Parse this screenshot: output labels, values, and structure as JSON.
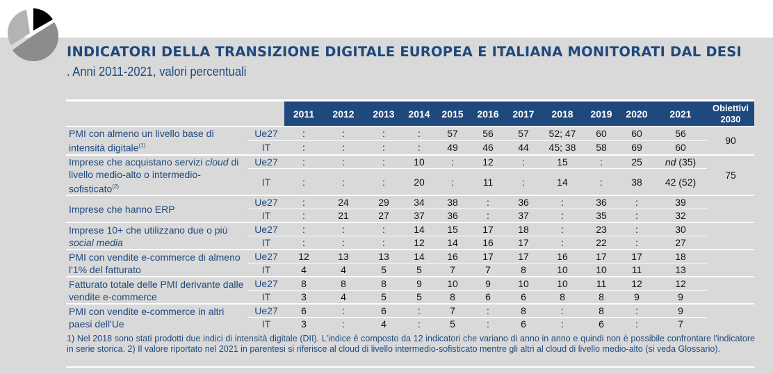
{
  "title": {
    "bold": "INDICATORI DELLA TRANSIZIONE DIGITALE EUROPEA E ITALIANA MONITORATI DAL DESI",
    "subtitle": ". Anni 2011-2021, valori percentuali"
  },
  "icon": "pie-chart-icon",
  "colors": {
    "accent": "#1f497d",
    "panel": "#d9d9d9"
  },
  "table": {
    "years": [
      "2011",
      "2012",
      "2013",
      "2014",
      "2015",
      "2016",
      "2017",
      "2018",
      "2019",
      "2020",
      "2021"
    ],
    "target_header": "Obiettivi 2030",
    "indicators": [
      {
        "label": "PMI con almeno un livello base di intensità digitale",
        "note": "(1)",
        "target": "90",
        "rows": [
          {
            "geo": "Ue27",
            "values": [
              ":",
              ":",
              ":",
              ":",
              "57",
              "56",
              "57",
              "52; 47",
              "60",
              "60",
              "56"
            ]
          },
          {
            "geo": "IT",
            "values": [
              ":",
              ":",
              ":",
              ":",
              "49",
              "46",
              "44",
              "45; 38",
              "58",
              "69",
              "60"
            ]
          }
        ]
      },
      {
        "label_pre": "Imprese che acquistano servizi ",
        "label_it": "cloud",
        "label_post": " di livello medio-alto o intermedio-sofisticato",
        "note": "(2)",
        "target": "75",
        "rows": [
          {
            "geo": "Ue27",
            "values": [
              ":",
              ":",
              ":",
              "10",
              ":",
              "12",
              ":",
              "15",
              ":",
              "25",
              "nd (35)"
            ]
          },
          {
            "geo": "IT",
            "values": [
              ":",
              ":",
              ":",
              "20",
              ":",
              "11",
              ":",
              "14",
              ":",
              "38",
              "42 (52)"
            ]
          }
        ]
      },
      {
        "label": "Imprese che hanno ERP",
        "target": "",
        "rows": [
          {
            "geo": "Ue27",
            "values": [
              ":",
              "24",
              "29",
              "34",
              "38",
              ":",
              "36",
              ":",
              "36",
              ":",
              "39"
            ]
          },
          {
            "geo": "IT",
            "values": [
              ":",
              "21",
              "27",
              "37",
              "36",
              ":",
              "37",
              ":",
              "35",
              ":",
              "32"
            ]
          }
        ]
      },
      {
        "label_pre": "Imprese 10+ che utilizzano due o più ",
        "label_it": "social media",
        "label_post": "",
        "target": "",
        "rows": [
          {
            "geo": "Ue27",
            "values": [
              ":",
              ":",
              ":",
              "14",
              "15",
              "17",
              "18",
              ":",
              "23",
              ":",
              "30"
            ]
          },
          {
            "geo": "IT",
            "values": [
              ":",
              ":",
              ":",
              "12",
              "14",
              "16",
              "17",
              ":",
              "22",
              ":",
              "27"
            ]
          }
        ]
      },
      {
        "label": "PMI con vendite e-commerce di almeno l'1% del fatturato",
        "target": "",
        "rows": [
          {
            "geo": "Ue27",
            "values": [
              "12",
              "13",
              "13",
              "14",
              "16",
              "17",
              "17",
              "16",
              "17",
              "17",
              "18"
            ]
          },
          {
            "geo": "IT",
            "values": [
              "4",
              "4",
              "5",
              "5",
              "7",
              "7",
              "8",
              "10",
              "10",
              "11",
              "13"
            ]
          }
        ]
      },
      {
        "label": "Fatturato totale delle PMI derivante dalle vendite e-commerce",
        "target": "",
        "rows": [
          {
            "geo": "Ue27",
            "values": [
              "8",
              "8",
              "8",
              "9",
              "10",
              "9",
              "10",
              "10",
              "11",
              "12",
              "12"
            ]
          },
          {
            "geo": "IT",
            "values": [
              "3",
              "4",
              "5",
              "5",
              "8",
              "6",
              "6",
              "8",
              "8",
              "9",
              "9"
            ]
          }
        ]
      },
      {
        "label": "PMI con vendite e-commerce in altri paesi dell'Ue",
        "target": "",
        "rows": [
          {
            "geo": "Ue27",
            "values": [
              "6",
              ":",
              "6",
              ":",
              "7",
              ":",
              "8",
              ":",
              "8",
              ":",
              "9"
            ]
          },
          {
            "geo": "IT",
            "values": [
              "3",
              ":",
              "4",
              ":",
              "5",
              ":",
              "6",
              ":",
              "6",
              ":",
              "7"
            ]
          }
        ]
      }
    ]
  },
  "notes": "1) Nel 2018 sono stati prodotti due indici di intensità digitale (DII). L'indice è composto da 12 indicatori che variano di anno in anno e quindi non è possibile confrontare l'indicatore in serie storica.     2) Il valore riportato nel 2021 in parentesi si riferisce al cloud di livello intermedio-sofisticato mentre gli altri al cloud di livello medio-alto (si veda Glossario)."
}
